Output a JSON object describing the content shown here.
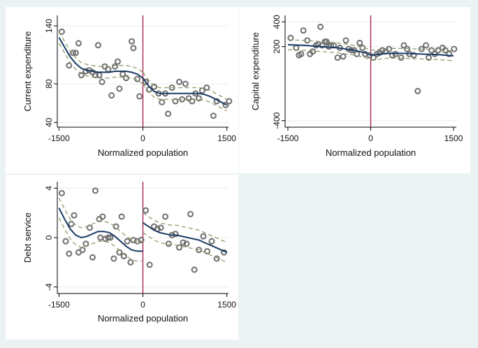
{
  "chart_data": [
    {
      "type": "scatter",
      "xlabel": "Normalized population",
      "ylabel": "Current expenditure",
      "xlim": [
        -1530,
        1530
      ],
      "ylim": [
        38,
        148
      ],
      "xticks": [
        -1500,
        0,
        1500
      ],
      "yticks": [
        40,
        80,
        140
      ],
      "cutoff": 0,
      "points": [
        [
          -1450,
          134
        ],
        [
          -1320,
          99
        ],
        [
          -1250,
          112
        ],
        [
          -1200,
          112
        ],
        [
          -1150,
          122
        ],
        [
          -1100,
          89
        ],
        [
          -1020,
          93
        ],
        [
          -960,
          94
        ],
        [
          -900,
          92
        ],
        [
          -850,
          89
        ],
        [
          -800,
          120
        ],
        [
          -780,
          89
        ],
        [
          -730,
          82
        ],
        [
          -680,
          98
        ],
        [
          -620,
          95
        ],
        [
          -560,
          68
        ],
        [
          -500,
          98
        ],
        [
          -450,
          103
        ],
        [
          -420,
          75
        ],
        [
          -360,
          90
        ],
        [
          -300,
          86
        ],
        [
          -200,
          124
        ],
        [
          -170,
          117
        ],
        [
          -100,
          85
        ],
        [
          -60,
          67
        ],
        [
          50,
          82
        ],
        [
          110,
          74
        ],
        [
          200,
          77
        ],
        [
          280,
          70
        ],
        [
          340,
          61
        ],
        [
          400,
          70
        ],
        [
          450,
          49
        ],
        [
          520,
          76
        ],
        [
          580,
          62
        ],
        [
          650,
          82
        ],
        [
          700,
          64
        ],
        [
          760,
          80
        ],
        [
          820,
          65
        ],
        [
          880,
          62
        ],
        [
          940,
          70
        ],
        [
          1000,
          65
        ],
        [
          1060,
          73
        ],
        [
          1140,
          76
        ],
        [
          1260,
          47
        ],
        [
          1320,
          62
        ],
        [
          1480,
          58
        ],
        [
          1540,
          62
        ]
      ],
      "fit_left": [
        [
          -1500,
          128
        ],
        [
          -1400,
          118
        ],
        [
          -1300,
          108
        ],
        [
          -1200,
          101
        ],
        [
          -1100,
          96
        ],
        [
          -1000,
          94
        ],
        [
          -900,
          93
        ],
        [
          -800,
          92
        ],
        [
          -700,
          92
        ],
        [
          -600,
          92
        ],
        [
          -500,
          93
        ],
        [
          -400,
          93
        ],
        [
          -300,
          93
        ],
        [
          -200,
          92
        ],
        [
          -100,
          90
        ],
        [
          0,
          86
        ]
      ],
      "fit_right": [
        [
          0,
          86
        ],
        [
          100,
          78
        ],
        [
          200,
          72
        ],
        [
          300,
          70
        ],
        [
          400,
          70
        ],
        [
          500,
          70
        ],
        [
          600,
          70
        ],
        [
          700,
          70
        ],
        [
          800,
          70
        ],
        [
          900,
          70
        ],
        [
          1000,
          70
        ],
        [
          1100,
          69
        ],
        [
          1200,
          67
        ],
        [
          1300,
          64
        ],
        [
          1400,
          61
        ],
        [
          1500,
          58
        ]
      ],
      "band_w": 6
    },
    {
      "type": "scatter",
      "xlabel": "Normalized population",
      "ylabel": "Capital expenditure",
      "xlim": [
        -1550,
        1550
      ],
      "ylim": [
        -430,
        430
      ],
      "xticks": [
        -1500,
        0,
        1500
      ],
      "yticks": [
        -400,
        200,
        400
      ],
      "cutoff": 0,
      "points": [
        [
          -1450,
          270
        ],
        [
          -1350,
          190
        ],
        [
          -1300,
          130
        ],
        [
          -1260,
          140
        ],
        [
          -1220,
          330
        ],
        [
          -1150,
          250
        ],
        [
          -1100,
          140
        ],
        [
          -1050,
          160
        ],
        [
          -990,
          210
        ],
        [
          -950,
          220
        ],
        [
          -910,
          360
        ],
        [
          -880,
          210
        ],
        [
          -830,
          240
        ],
        [
          -800,
          240
        ],
        [
          -760,
          200
        ],
        [
          -720,
          210
        ],
        [
          -670,
          210
        ],
        [
          -600,
          110
        ],
        [
          -560,
          190
        ],
        [
          -500,
          120
        ],
        [
          -450,
          250
        ],
        [
          -400,
          180
        ],
        [
          -350,
          170
        ],
        [
          -300,
          170
        ],
        [
          -250,
          140
        ],
        [
          -200,
          230
        ],
        [
          -150,
          190
        ],
        [
          -100,
          140
        ],
        [
          -20,
          130
        ],
        [
          50,
          110
        ],
        [
          110,
          140
        ],
        [
          160,
          150
        ],
        [
          210,
          170
        ],
        [
          270,
          160
        ],
        [
          330,
          180
        ],
        [
          390,
          130
        ],
        [
          450,
          140
        ],
        [
          550,
          110
        ],
        [
          600,
          210
        ],
        [
          660,
          180
        ],
        [
          700,
          140
        ],
        [
          780,
          130
        ],
        [
          850,
          -160
        ],
        [
          920,
          180
        ],
        [
          1000,
          210
        ],
        [
          1050,
          110
        ],
        [
          1100,
          170
        ],
        [
          1160,
          140
        ],
        [
          1220,
          170
        ],
        [
          1300,
          190
        ],
        [
          1350,
          170
        ],
        [
          1420,
          140
        ],
        [
          1510,
          180
        ]
      ],
      "fit_left": [
        [
          -1500,
          215
        ],
        [
          -1200,
          210
        ],
        [
          -900,
          200
        ],
        [
          -600,
          190
        ],
        [
          -300,
          170
        ],
        [
          -100,
          150
        ],
        [
          0,
          130
        ]
      ],
      "fit_right": [
        [
          0,
          130
        ],
        [
          100,
          135
        ],
        [
          300,
          145
        ],
        [
          600,
          145
        ],
        [
          900,
          140
        ],
        [
          1200,
          135
        ],
        [
          1500,
          125
        ]
      ],
      "band_w": 40
    },
    {
      "type": "scatter",
      "xlabel": "Normalized population",
      "ylabel": "Debt service",
      "xlim": [
        -1530,
        1530
      ],
      "ylim": [
        -4.3,
        4.3
      ],
      "xticks": [
        -1500,
        0,
        1500
      ],
      "yticks": [
        -4,
        0,
        4
      ],
      "cutoff": 0,
      "points": [
        [
          -1450,
          3.6
        ],
        [
          -1380,
          -0.3
        ],
        [
          -1320,
          -1.3
        ],
        [
          -1230,
          1.8
        ],
        [
          -1280,
          1.1
        ],
        [
          -1150,
          -1.2
        ],
        [
          -1080,
          -1
        ],
        [
          -1020,
          -0.5
        ],
        [
          -950,
          0.8
        ],
        [
          -900,
          -1.6
        ],
        [
          -850,
          3.8
        ],
        [
          -780,
          1.5
        ],
        [
          -760,
          0
        ],
        [
          -720,
          1.7
        ],
        [
          -670,
          -0.1
        ],
        [
          -620,
          0
        ],
        [
          -580,
          0
        ],
        [
          -520,
          -1.7
        ],
        [
          -480,
          0.9
        ],
        [
          -420,
          -1.2
        ],
        [
          -380,
          1.7
        ],
        [
          -340,
          -1.5
        ],
        [
          -280,
          -0.3
        ],
        [
          -220,
          -2
        ],
        [
          -170,
          -0.2
        ],
        [
          -100,
          -0.3
        ],
        [
          -30,
          -0.2
        ],
        [
          50,
          2.2
        ],
        [
          120,
          -2.2
        ],
        [
          200,
          0.9
        ],
        [
          260,
          0.7
        ],
        [
          320,
          0.8
        ],
        [
          400,
          1.7
        ],
        [
          460,
          -0.5
        ],
        [
          520,
          0.2
        ],
        [
          580,
          0.3
        ],
        [
          650,
          -0.8
        ],
        [
          720,
          -0.4
        ],
        [
          780,
          -0.5
        ],
        [
          850,
          1.9
        ],
        [
          920,
          -2.6
        ],
        [
          1000,
          -1
        ],
        [
          1080,
          0.1
        ],
        [
          1150,
          -1.1
        ],
        [
          1230,
          -0.3
        ],
        [
          1320,
          -1.7
        ],
        [
          1450,
          -1.2
        ]
      ],
      "fit_left": [
        [
          -1500,
          2.4
        ],
        [
          -1400,
          1.5
        ],
        [
          -1300,
          0.7
        ],
        [
          -1200,
          0.2
        ],
        [
          -1100,
          0
        ],
        [
          -1000,
          0.1
        ],
        [
          -900,
          0.3
        ],
        [
          -800,
          0.5
        ],
        [
          -700,
          0.5
        ],
        [
          -600,
          0.4
        ],
        [
          -500,
          0.1
        ],
        [
          -400,
          -0.3
        ],
        [
          -300,
          -0.7
        ],
        [
          -200,
          -1
        ],
        [
          -100,
          -1.1
        ],
        [
          0,
          -1.1
        ]
      ],
      "fit_right": [
        [
          0,
          1.2
        ],
        [
          100,
          0.9
        ],
        [
          200,
          0.6
        ],
        [
          300,
          0.4
        ],
        [
          400,
          0.3
        ],
        [
          500,
          0.2
        ],
        [
          600,
          0.2
        ],
        [
          700,
          0.1
        ],
        [
          800,
          0
        ],
        [
          900,
          -0.1
        ],
        [
          1000,
          -0.2
        ],
        [
          1100,
          -0.4
        ],
        [
          1200,
          -0.6
        ],
        [
          1300,
          -0.8
        ],
        [
          1400,
          -1
        ],
        [
          1500,
          -1.2
        ]
      ],
      "band_w": 0.8
    }
  ]
}
